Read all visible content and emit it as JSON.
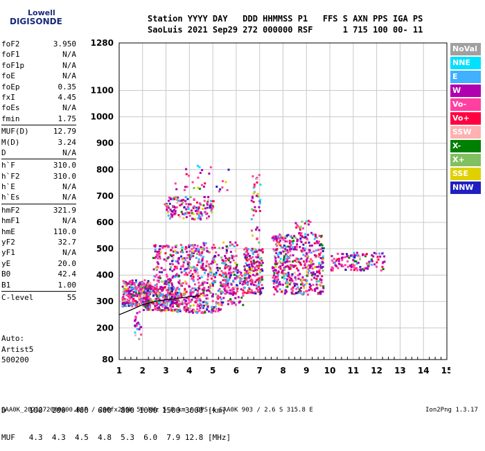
{
  "logo": {
    "top": "Lowell",
    "bottom": "DIGISONDE"
  },
  "header": {
    "line1": "Station YYYY DAY   DDD HHMMSS P1   FFS S AXN PPS IGA PS",
    "line2": "SaoLuis 2021 Sep29 272 000000 RSF      1 715 100 00- 11"
  },
  "params": [
    {
      "group": [
        {
          "name": "foF2",
          "value": "3.950"
        },
        {
          "name": "foF1",
          "value": "N/A"
        },
        {
          "name": "foF1p",
          "value": "N/A"
        },
        {
          "name": "foE",
          "value": "N/A"
        },
        {
          "name": "foEp",
          "value": "0.35"
        },
        {
          "name": "fxI",
          "value": "4.45"
        },
        {
          "name": "foEs",
          "value": "N/A"
        },
        {
          "name": "fmin",
          "value": "1.75"
        }
      ]
    },
    {
      "group": [
        {
          "name": "MUF(D)",
          "value": "12.79"
        },
        {
          "name": "M(D)",
          "value": "3.24"
        },
        {
          "name": "D",
          "value": "N/A"
        }
      ]
    },
    {
      "group": [
        {
          "name": "h`F",
          "value": "310.0"
        },
        {
          "name": "h`F2",
          "value": "310.0"
        },
        {
          "name": "h`E",
          "value": "N/A"
        },
        {
          "name": "h`Es",
          "value": "N/A"
        }
      ]
    },
    {
      "group": [
        {
          "name": "hmF2",
          "value": "321.9"
        },
        {
          "name": "hmF1",
          "value": "N/A"
        },
        {
          "name": "hmE",
          "value": "110.0"
        },
        {
          "name": "yF2",
          "value": "32.7"
        },
        {
          "name": "yF1",
          "value": "N/A"
        },
        {
          "name": "yE",
          "value": "20.0"
        },
        {
          "name": "B0",
          "value": "42.4"
        },
        {
          "name": "B1",
          "value": "1.00"
        }
      ]
    },
    {
      "group": [
        {
          "name": "C-level",
          "value": "55"
        }
      ]
    }
  ],
  "auto": {
    "line1": "Auto:",
    "line2": "Artist5",
    "line3": "500200"
  },
  "dmuf": {
    "d_line": "D     100  200  400  600  800 1000 1500 3000 [km]",
    "muf_line": "MUF   4.3  4.3  4.5  4.8  5.3  6.0  7.9 12.8 [MHz]"
  },
  "footer": {
    "left": "SAA0K_2021272000000.RSF / 280fx256h 50 kHz 5.0 km / DPS-4 SAA0K 903 / 2.6 S 315.8 E",
    "right": "Ion2Png 1.3.17"
  },
  "legend": [
    {
      "label": "NoVal",
      "color": "#a0a0a0"
    },
    {
      "label": "NNE",
      "color": "#00e0ff"
    },
    {
      "label": "E",
      "color": "#40b0ff"
    },
    {
      "label": "W",
      "color": "#b000b0"
    },
    {
      "label": "Vo-",
      "color": "#ff40a0"
    },
    {
      "label": "Vo+",
      "color": "#ff0040"
    },
    {
      "label": "SSW",
      "color": "#ffb0b0"
    },
    {
      "label": "X-",
      "color": "#008000"
    },
    {
      "label": "X+",
      "color": "#80c060"
    },
    {
      "label": "SSE",
      "color": "#e0d000"
    },
    {
      "label": "NNW",
      "color": "#2020c0"
    }
  ],
  "chart_data": {
    "type": "scatter",
    "xlim": [
      1,
      15
    ],
    "ylim": [
      80,
      1280
    ],
    "x_ticks": [
      "1",
      "2",
      "3",
      "4",
      "5",
      "6",
      "7",
      "8",
      "9",
      "10",
      "11",
      "12",
      "13",
      "14",
      "15"
    ],
    "y_ticks": [
      {
        "v": 80,
        "label": "80"
      },
      {
        "v": 200,
        "label": "200"
      },
      {
        "v": 300,
        "label": "300"
      },
      {
        "v": 400,
        "label": "400"
      },
      {
        "v": 500,
        "label": "500"
      },
      {
        "v": 600,
        "label": "600"
      },
      {
        "v": 700,
        "label": "700"
      },
      {
        "v": 800,
        "label": "800"
      },
      {
        "v": 900,
        "label": "900"
      },
      {
        "v": 1000,
        "label": "1000"
      },
      {
        "v": 1100,
        "label": "1100"
      },
      {
        "v": 1280,
        "label": "1280"
      }
    ],
    "grid": true,
    "legend_position": "right",
    "clusters": [
      {
        "f": [
          1.1,
          2.3
        ],
        "h": [
          285,
          385
        ],
        "n": 280
      },
      {
        "f": [
          2.0,
          3.5
        ],
        "h": [
          270,
          360
        ],
        "n": 260
      },
      {
        "f": [
          2.4,
          4.6
        ],
        "h": [
          330,
          520
        ],
        "n": 320
      },
      {
        "f": [
          2.5,
          5.3
        ],
        "h": [
          260,
          330
        ],
        "n": 200
      },
      {
        "f": [
          2.9,
          5.0
        ],
        "h": [
          615,
          700
        ],
        "n": 150
      },
      {
        "f": [
          3.3,
          5.7
        ],
        "h": [
          720,
          820
        ],
        "n": 30
      },
      {
        "f": [
          4.5,
          6.0
        ],
        "h": [
          330,
          530
        ],
        "n": 180
      },
      {
        "f": [
          5.3,
          6.3
        ],
        "h": [
          290,
          440
        ],
        "n": 110
      },
      {
        "f": [
          6.3,
          7.1
        ],
        "h": [
          330,
          510
        ],
        "n": 190
      },
      {
        "f": [
          6.6,
          7.0
        ],
        "h": [
          520,
          800
        ],
        "n": 40
      },
      {
        "f": [
          7.5,
          9.7
        ],
        "h": [
          330,
          560
        ],
        "n": 480
      },
      {
        "f": [
          8.5,
          9.3
        ],
        "h": [
          560,
          610
        ],
        "n": 20
      },
      {
        "f": [
          10.0,
          12.3
        ],
        "h": [
          420,
          490
        ],
        "n": 120
      },
      {
        "f": [
          1.6,
          1.9
        ],
        "h": [
          160,
          270
        ],
        "n": 20
      }
    ],
    "trace": [
      {
        "f": 1.0,
        "h": 250
      },
      {
        "f": 1.5,
        "h": 268
      },
      {
        "f": 2.0,
        "h": 288
      },
      {
        "f": 2.5,
        "h": 300
      },
      {
        "f": 3.0,
        "h": 307
      },
      {
        "f": 3.5,
        "h": 312
      },
      {
        "f": 4.0,
        "h": 318
      },
      {
        "f": 4.45,
        "h": 322
      }
    ]
  }
}
